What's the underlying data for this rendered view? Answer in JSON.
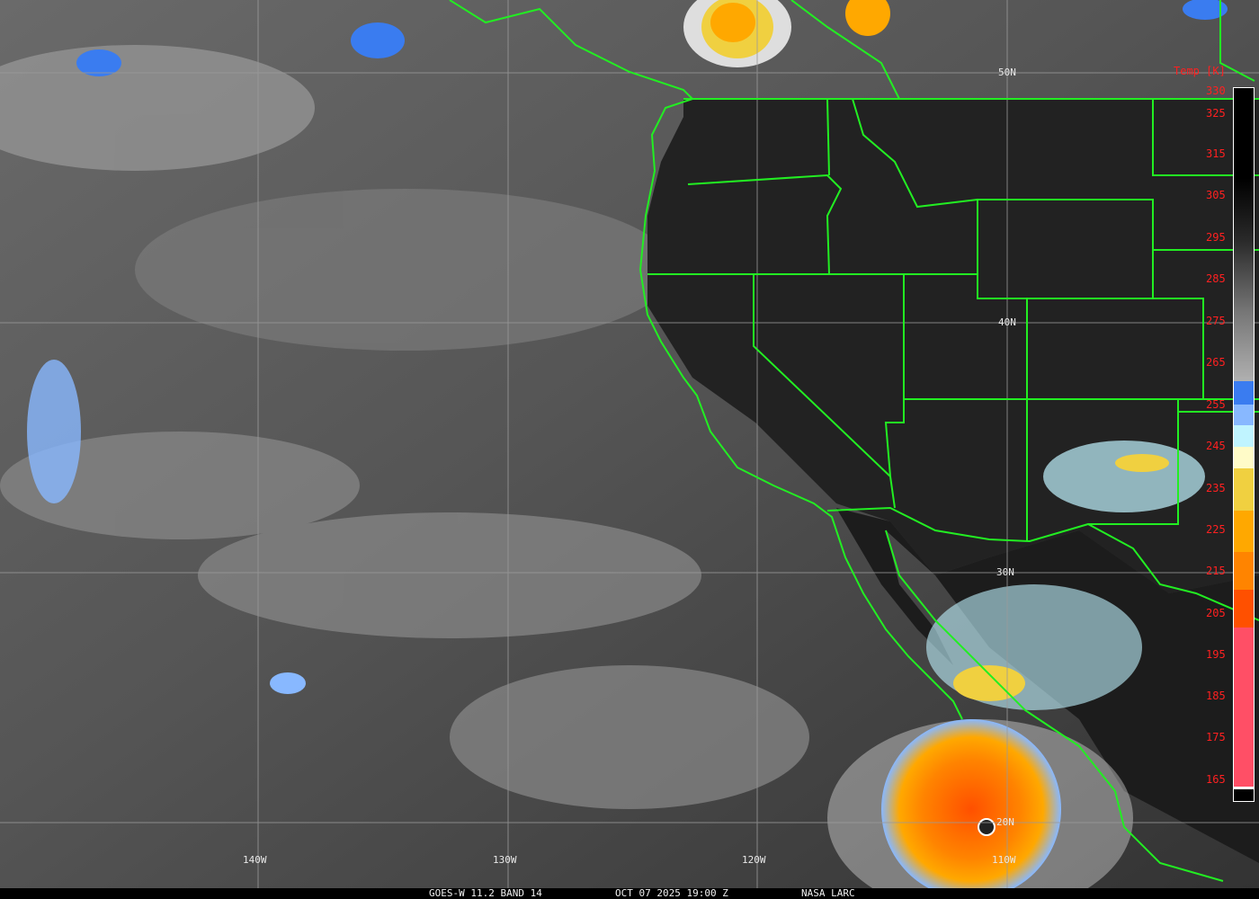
{
  "caption": {
    "source": "GOES-W 11.2 BAND 14",
    "datetime": "OCT 07 2025 19:00 Z",
    "credit": "NASA LARC"
  },
  "grid": {
    "latitudes": [
      "50N",
      "40N",
      "30N",
      "20N"
    ],
    "longitudes": [
      "140W",
      "130W",
      "120W",
      "110W"
    ]
  },
  "colorbar": {
    "title": "Temp [K]",
    "labels": [
      "330",
      "325",
      "315",
      "305",
      "295",
      "285",
      "275",
      "265",
      "255",
      "245",
      "235",
      "225",
      "215",
      "205",
      "195",
      "185",
      "175",
      "165"
    ],
    "colors": {
      "cold_blue": "#3a7cf0",
      "light_blue": "#88b8ff",
      "pale_cyan": "#c0f4ff",
      "pale_yellow": "#fffbc8",
      "yellow": "#f0d040",
      "orange": "#ffa800",
      "dark_orange": "#ff8400",
      "red_orange": "#ff5000",
      "pink": "#ff4f66",
      "boundary_green": "#22ee22"
    }
  }
}
